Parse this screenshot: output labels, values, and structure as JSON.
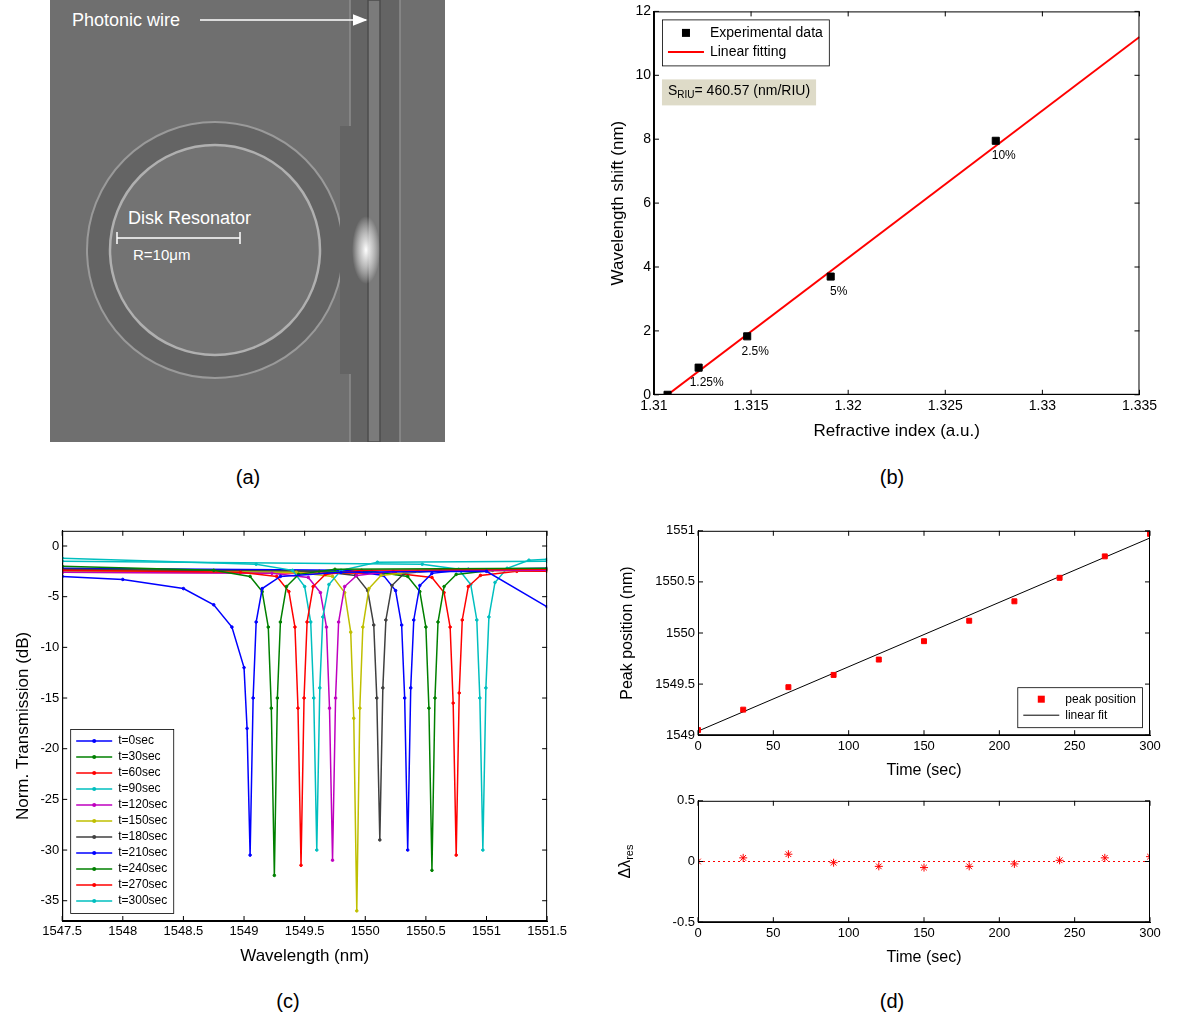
{
  "image_panel": {
    "panel": "(a)",
    "photonic_wire": "Photonic wire",
    "disk_label": "Disk Resonator",
    "radius_label": "R=10μm"
  },
  "chart_data": [
    {
      "panel": "(b)",
      "type": "scatter",
      "x_label": "Refractive index (a.u.)",
      "y_label": "Wavelength shift (nm)",
      "xlim": [
        1.31,
        1.335
      ],
      "xticks": [
        1.31,
        1.315,
        1.32,
        1.325,
        1.33,
        1.335
      ],
      "ylim": [
        0,
        12
      ],
      "yticks": [
        0,
        2,
        4,
        6,
        8,
        10,
        12
      ],
      "grid": false,
      "legend": "upper left",
      "annotation": [
        {
          "text": "S"
        },
        {
          "text": "RIU",
          "subscript": true
        },
        {
          "text": "= 460.57 (nm/RIU)"
        }
      ],
      "series": [
        {
          "name": "Experimental data",
          "color": "#000000",
          "marker": "square",
          "x": [
            1.3107,
            1.3123,
            1.3148,
            1.3191,
            1.3276
          ],
          "values": [
            0,
            0.85,
            1.83,
            3.7,
            7.95
          ],
          "point_labels": [
            null,
            "1.25%",
            "2.5%",
            "5%",
            "10%"
          ]
        },
        {
          "name": "Linear fitting",
          "color": "#ff0000",
          "type": "line",
          "line_style": "solid",
          "x": [
            1.3107,
            1.335
          ],
          "values": [
            0,
            11.2
          ]
        }
      ]
    },
    {
      "panel": "(c)",
      "type": "line",
      "x_label": "Wavelength (nm)",
      "y_label": "Norm. Transmission (dB)",
      "xlim": [
        1547.5,
        1551.5
      ],
      "xticks": [
        1547.5,
        1548,
        1548.5,
        1549,
        1549.5,
        1550,
        1550.5,
        1551,
        1551.5
      ],
      "ylim": [
        -37,
        1.5
      ],
      "yticks": [
        -35,
        -30,
        -25,
        -20,
        -15,
        -10,
        -5,
        0
      ],
      "grid": false,
      "legend": "lower left",
      "series": [
        {
          "name": "t=0sec",
          "color": "#0000ff",
          "marker": "point",
          "x": [
            1547.5,
            1548.0,
            1548.5,
            1548.75,
            1548.9,
            1549.0,
            1549.025,
            1549.05,
            1549.075,
            1549.1,
            1549.15,
            1549.3,
            1549.8,
            1551.0,
            1551.5
          ],
          "values": [
            -3.0,
            -3.3,
            -4.2,
            -5.8,
            -8,
            -12,
            -18,
            -30.5,
            -15,
            -7.5,
            -4.2,
            -3.0,
            -2.6,
            -2.5,
            -6
          ]
        },
        {
          "name": "t=30sec",
          "color": "#008000",
          "marker": "point",
          "x": [
            1547.5,
            1548.75,
            1549.05,
            1549.15,
            1549.2,
            1549.225,
            1549.25,
            1549.275,
            1549.3,
            1549.35,
            1549.45,
            1549.75,
            1551.5
          ],
          "values": [
            -2.0,
            -2.4,
            -3.0,
            -4.5,
            -8,
            -16,
            -32.5,
            -15,
            -7.5,
            -4,
            -2.8,
            -2.3,
            -2.2
          ]
        },
        {
          "name": "t=60sec",
          "color": "#ff0000",
          "marker": "point",
          "x": [
            1547.5,
            1548.97,
            1549.27,
            1549.37,
            1549.42,
            1549.445,
            1549.47,
            1549.495,
            1549.52,
            1549.57,
            1549.67,
            1549.97,
            1551.5
          ],
          "values": [
            -2.4,
            -2.6,
            -3.0,
            -4.5,
            -8,
            -16,
            -31.5,
            -15,
            -7.5,
            -4,
            -2.8,
            -2.4,
            -2.3
          ]
        },
        {
          "name": "t=90sec",
          "color": "#00bfbf",
          "marker": "point",
          "x": [
            1547.5,
            1549.1,
            1549.4,
            1549.5,
            1549.55,
            1549.575,
            1549.6,
            1549.625,
            1549.65,
            1549.7,
            1549.8,
            1550.1,
            1551.5
          ],
          "values": [
            -1.2,
            -1.8,
            -2.4,
            -4,
            -7.5,
            -15,
            -30,
            -14,
            -7,
            -3.8,
            -2.4,
            -1.6,
            -1.5
          ]
        },
        {
          "name": "t=120sec",
          "color": "#bf00bf",
          "marker": "point",
          "x": [
            1547.5,
            1549.23,
            1549.53,
            1549.63,
            1549.68,
            1549.705,
            1549.73,
            1549.755,
            1549.78,
            1549.83,
            1549.93,
            1550.23,
            1551.5
          ],
          "values": [
            -2.6,
            -2.7,
            -3.1,
            -4.6,
            -8,
            -16,
            -31,
            -15,
            -7.5,
            -4,
            -2.9,
            -2.5,
            -2.4
          ]
        },
        {
          "name": "t=150sec",
          "color": "#bfbf00",
          "marker": "point",
          "x": [
            1547.5,
            1549.43,
            1549.73,
            1549.83,
            1549.88,
            1549.905,
            1549.93,
            1549.955,
            1549.98,
            1550.03,
            1550.13,
            1550.43,
            1551.5
          ],
          "values": [
            -2.5,
            -2.6,
            -3.0,
            -4.6,
            -8.5,
            -17,
            -36,
            -16,
            -8,
            -4.2,
            -2.9,
            -2.5,
            -2.4
          ]
        },
        {
          "name": "t=180sec",
          "color": "#404040",
          "marker": "point",
          "x": [
            1547.5,
            1549.62,
            1549.92,
            1550.02,
            1550.07,
            1550.095,
            1550.12,
            1550.145,
            1550.17,
            1550.22,
            1550.32,
            1550.62,
            1551.5
          ],
          "values": [
            -2.3,
            -2.5,
            -2.9,
            -4.4,
            -7.8,
            -15,
            -29,
            -14,
            -7.3,
            -3.9,
            -2.7,
            -2.4,
            -2.3
          ]
        },
        {
          "name": "t=210sec",
          "color": "#0000ff",
          "marker": "point",
          "x": [
            1547.5,
            1549.85,
            1550.15,
            1550.25,
            1550.3,
            1550.325,
            1550.35,
            1550.375,
            1550.4,
            1550.45,
            1550.55,
            1550.85,
            1551.5
          ],
          "values": [
            -2.2,
            -2.4,
            -2.9,
            -4.4,
            -7.8,
            -15,
            -30,
            -14,
            -7.3,
            -3.9,
            -2.7,
            -2.3,
            -2.2
          ]
        },
        {
          "name": "t=240sec",
          "color": "#008000",
          "marker": "point",
          "x": [
            1547.5,
            1550.05,
            1550.35,
            1550.45,
            1550.5,
            1550.525,
            1550.55,
            1550.575,
            1550.6,
            1550.65,
            1550.75,
            1551.05,
            1551.5
          ],
          "values": [
            -2.4,
            -2.5,
            -3.0,
            -4.5,
            -8,
            -16,
            -32,
            -15,
            -7.5,
            -4,
            -2.8,
            -2.4,
            -2.3
          ]
        },
        {
          "name": "t=270sec",
          "color": "#ff0000",
          "marker": "point",
          "x": [
            1547.5,
            1550.25,
            1550.55,
            1550.65,
            1550.7,
            1550.725,
            1550.75,
            1550.775,
            1550.8,
            1550.85,
            1550.95,
            1551.25,
            1551.5
          ],
          "values": [
            -2.6,
            -2.7,
            -3.1,
            -4.6,
            -8,
            -15.5,
            -30.5,
            -14.5,
            -7.3,
            -4,
            -2.9,
            -2.5,
            -2.5
          ]
        },
        {
          "name": "t=300sec",
          "color": "#00bfbf",
          "marker": "point",
          "x": [
            1547.5,
            1550.47,
            1550.77,
            1550.87,
            1550.92,
            1550.945,
            1550.97,
            1550.995,
            1551.02,
            1551.07,
            1551.17,
            1551.35,
            1551.5
          ],
          "values": [
            -1.5,
            -1.8,
            -2.3,
            -3.8,
            -7.3,
            -15,
            -30,
            -14,
            -7,
            -3.6,
            -2.2,
            -1.4,
            -1.3
          ]
        }
      ]
    },
    {
      "panel": "(d)",
      "type": "scatter",
      "x_label": "Time (sec)",
      "y_label": "Peak position (nm)",
      "xlim": [
        0,
        300
      ],
      "xticks": [
        0,
        50,
        100,
        150,
        200,
        250,
        300
      ],
      "ylim": [
        1549,
        1551
      ],
      "yticks": [
        1549,
        1549.5,
        1550,
        1550.5,
        1551
      ],
      "grid": false,
      "legend": "lower right",
      "series": [
        {
          "name": "peak position",
          "color": "#ff0000",
          "marker": "square",
          "x": [
            0,
            30,
            60,
            90,
            120,
            150,
            180,
            210,
            240,
            270,
            300
          ],
          "values": [
            1549.05,
            1549.25,
            1549.47,
            1549.59,
            1549.74,
            1549.92,
            1550.12,
            1550.31,
            1550.54,
            1550.75,
            1550.97
          ]
        },
        {
          "name": "linear fit",
          "color": "#000000",
          "type": "line",
          "line_style": "solid",
          "x": [
            0,
            300
          ],
          "values": [
            1549.04,
            1550.93
          ]
        }
      ]
    },
    {
      "type": "scatter",
      "x_label": "Time (sec)",
      "y_label": [
        {
          "text": "Δλ"
        },
        {
          "text": "res",
          "subscript": true
        }
      ],
      "xlim": [
        0,
        300
      ],
      "xticks": [
        0,
        50,
        100,
        150,
        200,
        250,
        300
      ],
      "ylim": [
        -0.5,
        0.5
      ],
      "yticks": [
        -0.5,
        0,
        0.5
      ],
      "grid": false,
      "series": [
        {
          "color": "#ff0000",
          "type": "line",
          "line_style": "dotted",
          "x": [
            0,
            300
          ],
          "values": [
            0,
            0
          ]
        },
        {
          "color": "#ff0000",
          "marker": "star",
          "x": [
            0,
            30,
            60,
            90,
            120,
            150,
            180,
            210,
            240,
            270,
            300
          ],
          "values": [
            0,
            0.03,
            0.06,
            -0.01,
            -0.04,
            -0.05,
            -0.04,
            -0.02,
            0.01,
            0.03,
            0.04
          ]
        }
      ]
    }
  ]
}
